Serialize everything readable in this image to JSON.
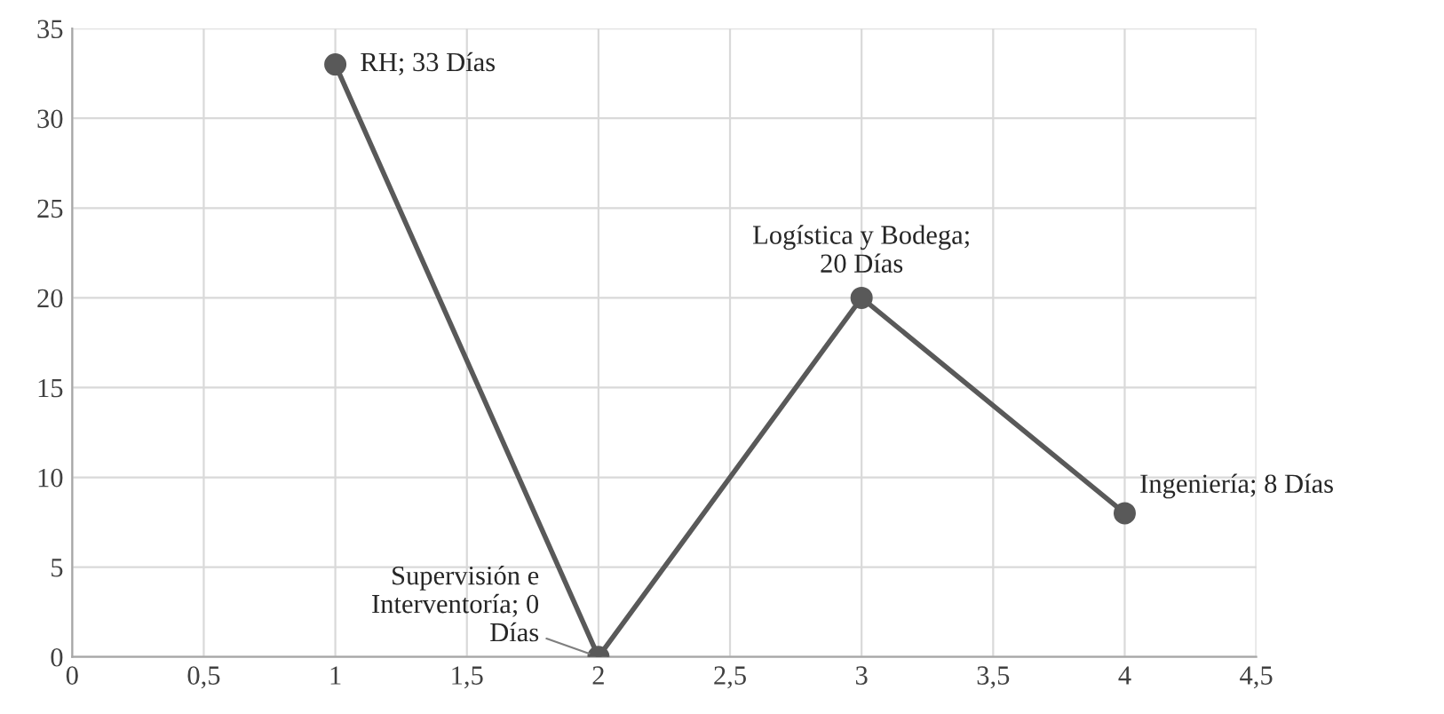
{
  "chart_data": {
    "type": "line",
    "x": [
      1,
      2,
      3,
      4
    ],
    "series": [
      {
        "color": "#595959",
        "values": [
          33,
          0,
          20,
          8
        ]
      }
    ],
    "xlim": [
      0,
      4.5
    ],
    "xticks": [
      0,
      {
        "value": 0.5,
        "label": "0,5"
      },
      1,
      {
        "value": 1.5,
        "label": "1,5"
      },
      2,
      {
        "value": 2.5,
        "label": "2,5"
      },
      3,
      {
        "value": 3.5,
        "label": "3,5"
      },
      4,
      {
        "value": 4.5,
        "label": "4,5"
      }
    ],
    "ylim": [
      0,
      35
    ],
    "yticks": [
      0,
      5,
      10,
      15,
      20,
      25,
      30,
      35
    ],
    "grid": true,
    "marker": "circle",
    "line_style": "solid",
    "annotations": [
      {
        "text": "RH; 33 Días",
        "x": 1,
        "y": 33
      },
      {
        "text": "Supervisión e\nInterventoría; 0\nDías",
        "x": 2,
        "y": 0
      },
      {
        "text": "Logística y Bodega;\n20 Días",
        "x": 3,
        "y": 20
      },
      {
        "text": "Ingeniería; 8 Días",
        "x": 4,
        "y": 8
      }
    ]
  }
}
